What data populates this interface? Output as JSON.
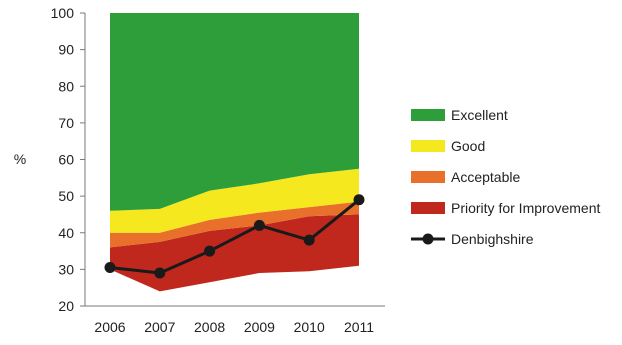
{
  "chart_data": {
    "type": "area",
    "ylabel": "%",
    "ylim": [
      20,
      100
    ],
    "yticks": [
      20,
      30,
      40,
      50,
      60,
      70,
      80,
      90,
      100
    ],
    "categories": [
      "2006",
      "2007",
      "2008",
      "2009",
      "2010",
      "2011"
    ],
    "bands": [
      {
        "name": "Priority for Improvement",
        "color": "#c0281e",
        "lower": [
          30,
          24,
          26.5,
          29,
          29.5,
          31
        ],
        "upper": [
          36,
          37.5,
          40.5,
          42,
          44.5,
          45
        ]
      },
      {
        "name": "Acceptable",
        "color": "#e8702a",
        "lower": [
          36,
          37.5,
          40.5,
          42,
          44.5,
          45
        ],
        "upper": [
          40,
          40,
          43.5,
          45.5,
          47,
          48.5
        ]
      },
      {
        "name": "Good",
        "color": "#f5e81e",
        "lower": [
          40,
          40,
          43.5,
          45.5,
          47,
          48.5
        ],
        "upper": [
          46,
          46.5,
          51.5,
          53.5,
          56,
          57.5
        ]
      },
      {
        "name": "Excellent",
        "color": "#2e9e3a",
        "lower": [
          46,
          46.5,
          51.5,
          53.5,
          56,
          57.5
        ],
        "upper": [
          100,
          100,
          100,
          100,
          100,
          100
        ]
      }
    ],
    "series": [
      {
        "name": "Denbighshire",
        "color": "#1a1a1a",
        "values": [
          30.5,
          29,
          35,
          42,
          38,
          49
        ]
      }
    ],
    "legend": [
      {
        "name": "Excellent",
        "color": "#2e9e3a",
        "kind": "box"
      },
      {
        "name": "Good",
        "color": "#f5e81e",
        "kind": "box"
      },
      {
        "name": "Acceptable",
        "color": "#e8702a",
        "kind": "box"
      },
      {
        "name": "Priority for Improvement",
        "color": "#c0281e",
        "kind": "box"
      },
      {
        "name": "Denbighshire",
        "color": "#1a1a1a",
        "kind": "line"
      }
    ],
    "legend_position": "right",
    "grid": false
  }
}
